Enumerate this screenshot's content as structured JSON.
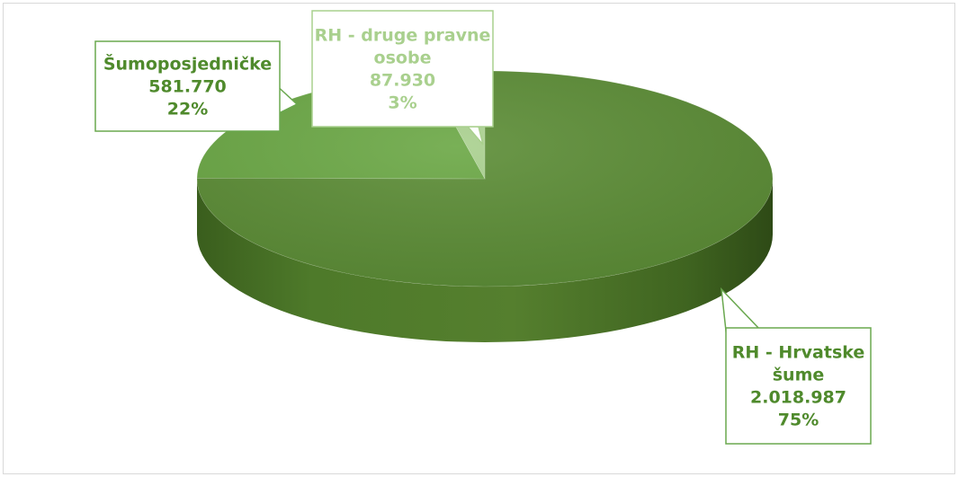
{
  "chart_data": {
    "type": "pie",
    "style": "3d",
    "title": "",
    "slices": [
      {
        "label": "RH - Hrvatske šume",
        "label_lines": [
          "RH - Hrvatske",
          "šume"
        ],
        "value_text": "2.018.987",
        "value": 2018987,
        "percent_text": "75%",
        "color": "#5b8c35",
        "text_color": "#4f8a2c",
        "border_color": "#6aa84f"
      },
      {
        "label": "Šumoposjedničke",
        "label_lines": [
          "Šumoposjedničke"
        ],
        "value_text": "581.770",
        "value": 581770,
        "percent_text": "22%",
        "color": "#6aa744",
        "text_color": "#4f8a2c",
        "border_color": "#6aa84f"
      },
      {
        "label": "RH - druge pravne osobe",
        "label_lines": [
          "RH - druge pravne",
          "osobe"
        ],
        "value_text": "87.930",
        "value": 87930,
        "percent_text": "3%",
        "color": "#a9d08e",
        "text_color": "#a9d08e",
        "border_color": "#a9d08e"
      }
    ],
    "legend": "none",
    "data_labels": "callouts"
  }
}
